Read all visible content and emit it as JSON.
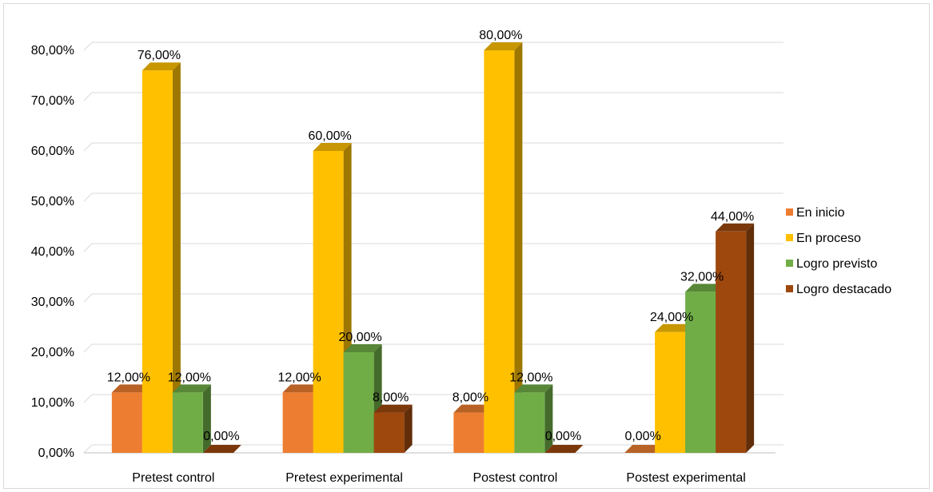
{
  "chart_data": {
    "type": "bar",
    "title": "",
    "xlabel": "",
    "ylabel": "",
    "ylim": [
      0,
      80
    ],
    "yticks": [
      0,
      10,
      20,
      30,
      40,
      50,
      60,
      70,
      80
    ],
    "ytick_labels": [
      "0,00%",
      "10,00%",
      "20,00%",
      "30,00%",
      "40,00%",
      "50,00%",
      "60,00%",
      "70,00%",
      "80,00%"
    ],
    "categories": [
      "Pretest control",
      "Pretest experimental",
      "Postest control",
      "Postest experimental"
    ],
    "series": [
      {
        "name": "En inicio",
        "color": "#ED7D31",
        "values": [
          12,
          12,
          8,
          0
        ],
        "labels": [
          "12,00%",
          "12,00%",
          "8,00%",
          "0,00%"
        ]
      },
      {
        "name": "En proceso",
        "color": "#FFC000",
        "values": [
          76,
          60,
          80,
          24
        ],
        "labels": [
          "76,00%",
          "60,00%",
          "80,00%",
          "24,00%"
        ]
      },
      {
        "name": "Logro previsto",
        "color": "#70AD47",
        "values": [
          12,
          20,
          12,
          32
        ],
        "labels": [
          "12,00%",
          "20,00%",
          "12,00%",
          "32,00%"
        ]
      },
      {
        "name": "Logro destacado",
        "color": "#9E480E",
        "values": [
          0,
          8,
          0,
          44
        ],
        "labels": [
          "0,00%",
          "8,00%",
          "0,00%",
          "44,00%"
        ]
      }
    ],
    "grid": true,
    "legend_position": "right",
    "style": "3d-clustered-column"
  }
}
